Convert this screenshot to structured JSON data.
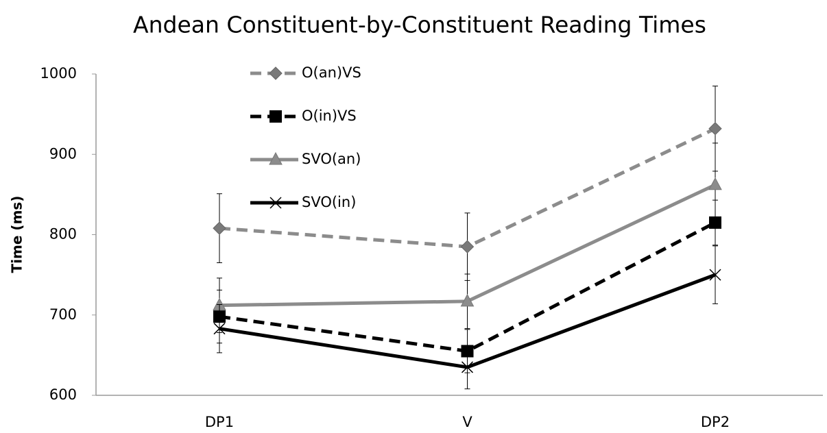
{
  "chart_data": {
    "type": "line",
    "title": "Andean Constituent-by-Constituent Reading Times",
    "y_label": "Time (ms)",
    "categories": [
      "DP1",
      "V",
      "DP2"
    ],
    "ylim": [
      600,
      1000
    ],
    "yticks": [
      600,
      700,
      800,
      900,
      1000
    ],
    "grid": false,
    "legend": "top-left",
    "series": [
      {
        "name": "O(an)VS",
        "color": "#8c8c8c",
        "dashed": true,
        "marker": "diamond",
        "values": [
          808,
          785,
          932
        ],
        "errors": [
          43,
          42,
          53
        ]
      },
      {
        "name": "O(in)VS",
        "color": "#000000",
        "dashed": true,
        "marker": "square",
        "values": [
          698,
          655,
          815
        ],
        "errors": [
          33,
          27,
          28
        ]
      },
      {
        "name": "SVO(an)",
        "color": "#8c8c8c",
        "dashed": false,
        "marker": "triangle",
        "values": [
          712,
          717,
          862
        ],
        "errors": [
          34,
          34,
          52
        ]
      },
      {
        "name": "SVO(in)",
        "color": "#000000",
        "dashed": false,
        "marker": "x",
        "values": [
          683,
          635,
          750
        ],
        "errors": [
          30,
          27,
          36
        ]
      }
    ]
  }
}
